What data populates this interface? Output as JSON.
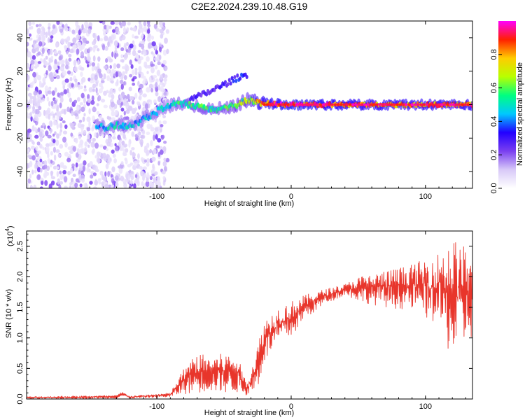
{
  "title": "C2E2.2024.239.10.48.G19",
  "colors": {
    "snr_line": "#e8352b",
    "axis": "#000000",
    "background": "#ffffff",
    "colorbar_stops": [
      "#ffffff",
      "#d8c9f8",
      "#7a3ff0",
      "#2200ff",
      "#00c8ff",
      "#00ff80",
      "#b8ff00",
      "#ffcc00",
      "#ff2000",
      "#ff00ff"
    ]
  },
  "chart_data": [
    {
      "type": "heatmap",
      "title": "C2E2.2024.239.10.48.G19",
      "xlabel": "Height of straight line (km)",
      "ylabel": "Frequency (Hz)",
      "xlim": [
        -197,
        135
      ],
      "ylim": [
        -50,
        50
      ],
      "x_ticks": [
        -100,
        0,
        100
      ],
      "y_ticks": [
        -40,
        -20,
        0,
        20,
        40
      ],
      "x_tick_labels": [
        "-100",
        "0",
        "100"
      ],
      "y_tick_labels": [
        "-40",
        "-20",
        "0",
        "20",
        "40"
      ],
      "colorbar": {
        "label": "Normalized spectral amplitude",
        "range": [
          0,
          1
        ],
        "ticks": [
          0.0,
          0.2,
          0.4,
          0.6,
          0.8
        ],
        "tick_labels": [
          "0.0",
          "0.2",
          "0.4",
          "0.6",
          "0.8"
        ]
      },
      "ridge": [
        {
          "x": -145,
          "y": -12.5,
          "a": 0.45
        },
        {
          "x": -138,
          "y": -14,
          "a": 0.5
        },
        {
          "x": -130,
          "y": -12,
          "a": 0.55
        },
        {
          "x": -122,
          "y": -13,
          "a": 0.5
        },
        {
          "x": -115,
          "y": -11,
          "a": 0.5
        },
        {
          "x": -95,
          "y": -2,
          "a": 0.5
        },
        {
          "x": -88,
          "y": 0,
          "a": 0.55
        },
        {
          "x": -80,
          "y": 0.5,
          "a": 0.6
        },
        {
          "x": -70,
          "y": -1,
          "a": 0.6
        },
        {
          "x": -60,
          "y": -3,
          "a": 0.6
        },
        {
          "x": -50,
          "y": -2,
          "a": 0.6
        },
        {
          "x": -40,
          "y": 0,
          "a": 0.65
        },
        {
          "x": -32,
          "y": 3,
          "a": 0.7
        },
        {
          "x": -25,
          "y": 1.5,
          "a": 0.85
        },
        {
          "x": -15,
          "y": 0.5,
          "a": 0.95
        },
        {
          "x": 0,
          "y": 0,
          "a": 1.0
        },
        {
          "x": 30,
          "y": 0,
          "a": 0.95
        },
        {
          "x": 60,
          "y": 0,
          "a": 0.9
        },
        {
          "x": 100,
          "y": 0,
          "a": 0.9
        },
        {
          "x": 135,
          "y": 0,
          "a": 0.9
        }
      ],
      "secondary_ridge": [
        {
          "x": -75,
          "y": 3,
          "a": 0.3
        },
        {
          "x": -60,
          "y": 8,
          "a": 0.3
        },
        {
          "x": -50,
          "y": 12,
          "a": 0.3
        },
        {
          "x": -40,
          "y": 16,
          "a": 0.35
        },
        {
          "x": -33,
          "y": 18,
          "a": 0.35
        }
      ]
    },
    {
      "type": "line",
      "xlabel": "Height of straight line (km)",
      "ylabel": "SNR (10 * v/v)",
      "y_multiplier_label": "(x10",
      "y_multiplier_exp": "4",
      "xlim": [
        -197,
        135
      ],
      "ylim": [
        0,
        2.75
      ],
      "x_ticks": [
        -100,
        0,
        100
      ],
      "y_ticks": [
        0.0,
        0.5,
        1.0,
        1.5,
        2.0,
        2.5
      ],
      "x_tick_labels": [
        "-100",
        "0",
        "100"
      ],
      "y_tick_labels": [
        "0.0",
        "0.5",
        "1.0",
        "1.5",
        "2.0",
        "2.5"
      ],
      "series": [
        {
          "envelope": [
            {
              "x": -197,
              "lo": 0.0,
              "hi": 0.04
            },
            {
              "x": -130,
              "lo": 0.01,
              "hi": 0.06
            },
            {
              "x": -126,
              "lo": 0.04,
              "hi": 0.12
            },
            {
              "x": -120,
              "lo": 0.01,
              "hi": 0.05
            },
            {
              "x": -90,
              "lo": 0.03,
              "hi": 0.1
            },
            {
              "x": -80,
              "lo": 0.08,
              "hi": 0.5
            },
            {
              "x": -70,
              "lo": 0.1,
              "hi": 0.75
            },
            {
              "x": -60,
              "lo": 0.12,
              "hi": 0.7
            },
            {
              "x": -50,
              "lo": 0.1,
              "hi": 0.75
            },
            {
              "x": -40,
              "lo": 0.1,
              "hi": 0.7
            },
            {
              "x": -33,
              "lo": 0.06,
              "hi": 0.25
            },
            {
              "x": -25,
              "lo": 0.15,
              "hi": 0.9
            },
            {
              "x": -20,
              "lo": 0.6,
              "hi": 1.3
            },
            {
              "x": -10,
              "lo": 0.9,
              "hi": 1.5
            },
            {
              "x": 0,
              "lo": 1.0,
              "hi": 1.6
            },
            {
              "x": 10,
              "lo": 1.3,
              "hi": 1.7
            },
            {
              "x": 25,
              "lo": 1.55,
              "hi": 1.8
            },
            {
              "x": 40,
              "lo": 1.7,
              "hi": 1.88
            },
            {
              "x": 50,
              "lo": 1.6,
              "hi": 2.0
            },
            {
              "x": 70,
              "lo": 1.5,
              "hi": 2.1
            },
            {
              "x": 90,
              "lo": 1.45,
              "hi": 2.2
            },
            {
              "x": 110,
              "lo": 1.2,
              "hi": 2.4
            },
            {
              "x": 120,
              "lo": 0.6,
              "hi": 2.65
            },
            {
              "x": 135,
              "lo": 1.0,
              "hi": 2.4
            }
          ]
        }
      ]
    }
  ]
}
